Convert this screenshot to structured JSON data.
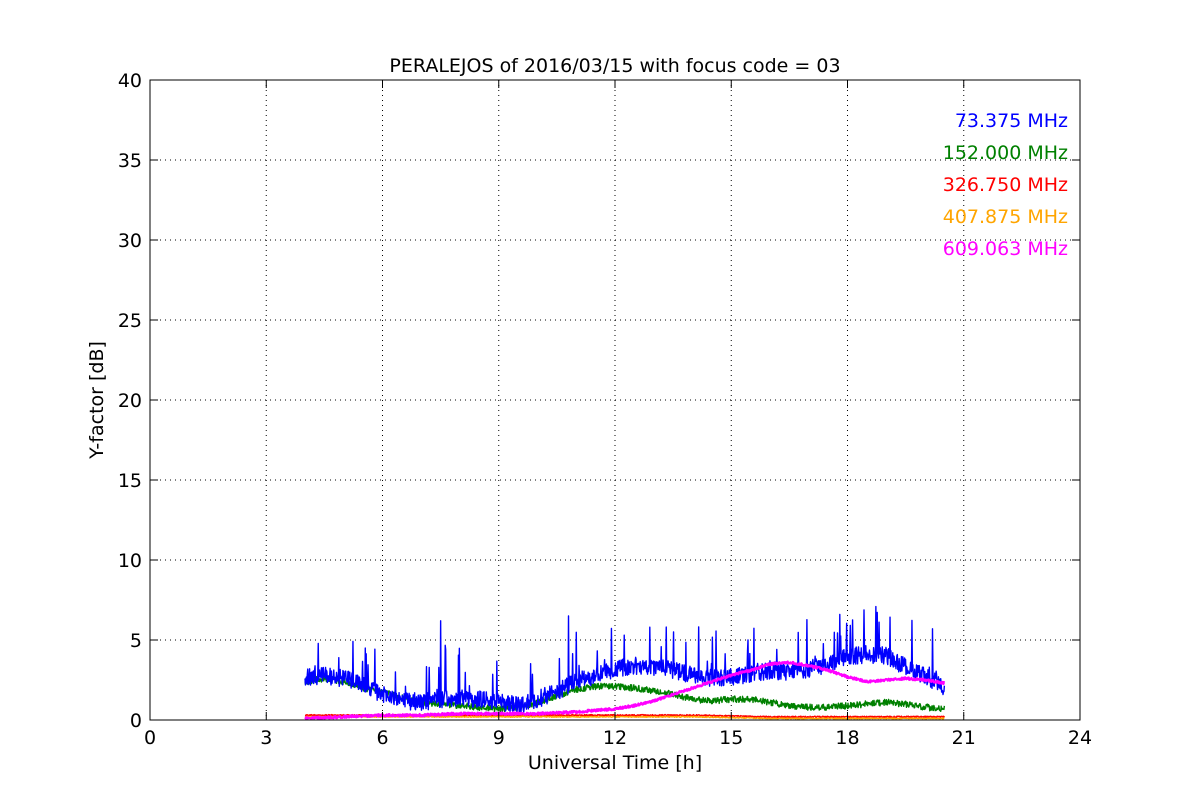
{
  "chart_data": {
    "type": "line",
    "title": "PERALEJOS of 2016/03/15 with focus code = 03",
    "xlabel": "Universal Time [h]",
    "ylabel": "Y-factor [dB]",
    "xlim": [
      0,
      24
    ],
    "ylim": [
      0,
      40
    ],
    "xticks": [
      0,
      3,
      6,
      9,
      12,
      15,
      18,
      21,
      24
    ],
    "yticks": [
      0,
      5,
      10,
      15,
      20,
      25,
      30,
      35,
      40
    ],
    "grid": true,
    "legend_position": "top-right",
    "series": [
      {
        "name": "73.375 MHz",
        "color": "#0000ff",
        "noise": 1.1,
        "spike_prob": 0.05,
        "spike_max": 3.0,
        "x": [
          4.0,
          4.5,
          5.0,
          5.5,
          6.0,
          6.5,
          7.0,
          7.5,
          8.0,
          8.5,
          9.0,
          9.5,
          10.0,
          10.5,
          11.0,
          11.5,
          12.0,
          12.5,
          13.0,
          13.5,
          14.0,
          14.5,
          15.0,
          15.5,
          16.0,
          16.5,
          17.0,
          17.5,
          18.0,
          18.5,
          19.0,
          19.5,
          20.0,
          20.5
        ],
        "y": [
          2.7,
          2.8,
          2.6,
          2.2,
          1.6,
          1.2,
          1.1,
          1.3,
          1.4,
          1.3,
          1.2,
          0.9,
          1.3,
          1.8,
          2.4,
          2.8,
          3.2,
          3.4,
          3.3,
          3.1,
          2.8,
          2.6,
          2.7,
          2.9,
          3.1,
          3.0,
          3.2,
          3.5,
          4.0,
          4.1,
          4.0,
          3.3,
          2.8,
          2.0
        ],
        "peaks": [
          {
            "x": 7.5,
            "y": 6.2
          },
          {
            "x": 10.8,
            "y": 6.5
          },
          {
            "x": 17.8,
            "y": 6.6
          },
          {
            "x": 20.2,
            "y": 5.7
          },
          {
            "x": 12.9,
            "y": 5.8
          }
        ]
      },
      {
        "name": "152.000 MHz",
        "color": "#008000",
        "noise": 0.4,
        "spike_prob": 0,
        "spike_max": 0,
        "x": [
          4.0,
          4.5,
          5.0,
          5.5,
          6.0,
          6.5,
          7.0,
          7.5,
          8.0,
          8.5,
          9.0,
          9.5,
          10.0,
          10.5,
          11.0,
          11.5,
          12.0,
          12.5,
          13.0,
          13.5,
          14.0,
          14.5,
          15.0,
          15.5,
          16.0,
          16.5,
          17.0,
          17.5,
          18.0,
          18.5,
          19.0,
          19.5,
          20.0,
          20.5
        ],
        "y": [
          2.4,
          2.6,
          2.4,
          2.0,
          1.8,
          1.4,
          1.1,
          1.0,
          0.9,
          0.8,
          0.7,
          0.8,
          1.1,
          1.5,
          1.9,
          2.1,
          2.1,
          2.0,
          1.8,
          1.6,
          1.3,
          1.2,
          1.3,
          1.3,
          1.1,
          0.9,
          0.8,
          0.8,
          0.9,
          1.0,
          1.1,
          1.0,
          0.8,
          0.7
        ],
        "peaks": []
      },
      {
        "name": "326.750 MHz",
        "color": "#ff0000",
        "noise": 0.08,
        "spike_prob": 0,
        "spike_max": 0,
        "x": [
          4.0,
          6.0,
          8.0,
          10.0,
          12.0,
          14.0,
          16.0,
          18.0,
          20.5
        ],
        "y": [
          0.3,
          0.3,
          0.3,
          0.3,
          0.3,
          0.3,
          0.2,
          0.2,
          0.2
        ],
        "peaks": []
      },
      {
        "name": "407.875 MHz",
        "color": "#ffa500",
        "noise": 0.06,
        "spike_prob": 0,
        "spike_max": 0,
        "x": [
          4.0,
          6.0,
          8.0,
          10.0,
          12.0,
          14.0,
          16.0,
          18.0,
          20.5
        ],
        "y": [
          0.2,
          0.2,
          0.2,
          0.2,
          0.2,
          0.2,
          0.1,
          0.1,
          0.1
        ],
        "peaks": []
      },
      {
        "name": "609.063 MHz",
        "color": "#ff00ff",
        "noise": 0.15,
        "spike_prob": 0,
        "spike_max": 0,
        "x": [
          4.0,
          5.0,
          6.0,
          7.0,
          8.0,
          9.0,
          10.0,
          11.0,
          12.0,
          12.5,
          13.0,
          13.5,
          14.0,
          14.5,
          15.0,
          15.5,
          16.0,
          16.5,
          17.0,
          17.5,
          18.0,
          18.5,
          19.0,
          19.5,
          20.0,
          20.5
        ],
        "y": [
          0.1,
          0.2,
          0.3,
          0.3,
          0.4,
          0.4,
          0.4,
          0.5,
          0.7,
          0.9,
          1.2,
          1.6,
          2.0,
          2.4,
          2.8,
          3.1,
          3.5,
          3.6,
          3.4,
          3.1,
          2.7,
          2.4,
          2.5,
          2.6,
          2.5,
          2.3
        ],
        "peaks": []
      }
    ]
  }
}
